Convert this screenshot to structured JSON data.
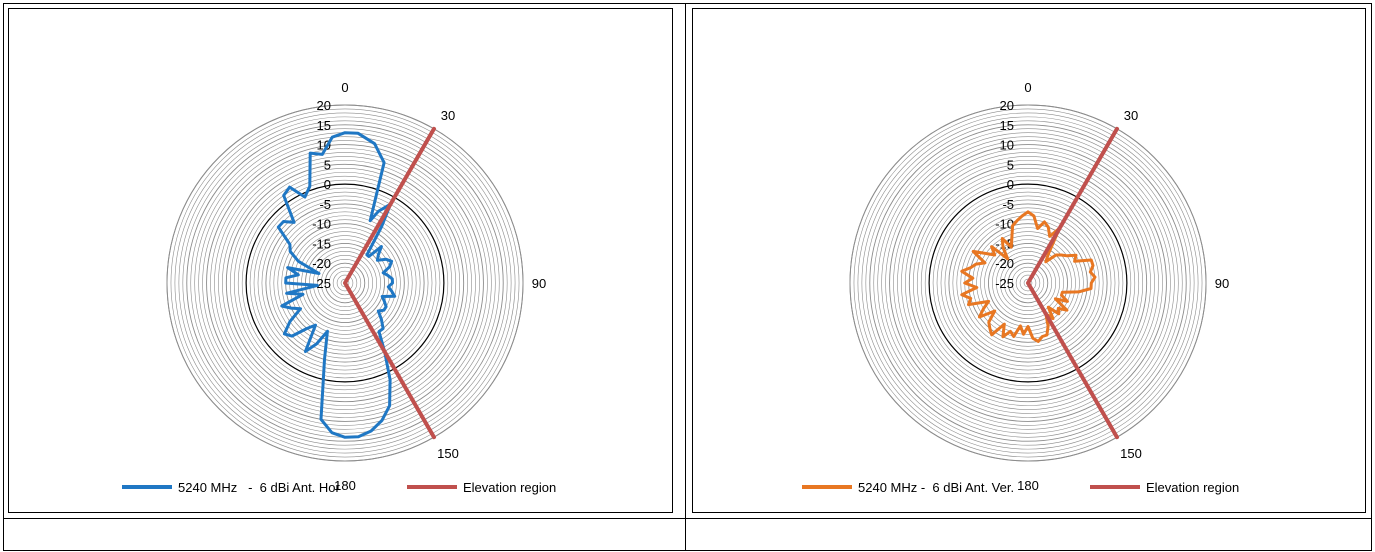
{
  "colors": {
    "horizontal": "#1f77c4",
    "vertical": "#e87722",
    "elevation": "#c0504d",
    "grid": "#8c8c8c",
    "zero_ring": "#000000"
  },
  "chart_data": [
    {
      "type": "polar-line",
      "title": "",
      "radial_ticks": [
        "20",
        "15",
        "10",
        "5",
        "0",
        "-5",
        "-10",
        "-15",
        "-20",
        "-25"
      ],
      "r_range": [
        -25,
        20
      ],
      "angle_labels": [
        "0",
        "30",
        "90",
        "150",
        "180"
      ],
      "grid": true,
      "legend_position": "bottom",
      "series": [
        {
          "name": "5240 MHz   -  6 dBi Ant. Hor",
          "color_key": "horizontal",
          "points": [
            [
              0,
              13
            ],
            [
              5,
              13
            ],
            [
              12,
              11
            ],
            [
              18,
              7
            ],
            [
              22,
              -8
            ],
            [
              25,
              -5
            ],
            [
              30,
              -2
            ],
            [
              33,
              -8
            ],
            [
              38,
              -16
            ],
            [
              42,
              -16
            ],
            [
              45,
              -12
            ],
            [
              50,
              -14
            ],
            [
              55,
              -15
            ],
            [
              60,
              -13
            ],
            [
              65,
              -12
            ],
            [
              70,
              -13
            ],
            [
              75,
              -15
            ],
            [
              80,
              -14
            ],
            [
              85,
              -13
            ],
            [
              90,
              -13
            ],
            [
              95,
              -14
            ],
            [
              100,
              -13
            ],
            [
              105,
              -12
            ],
            [
              110,
              -15
            ],
            [
              115,
              -14
            ],
            [
              120,
              -13
            ],
            [
              125,
              -13
            ],
            [
              130,
              -14
            ],
            [
              135,
              -12
            ],
            [
              140,
              -10
            ],
            [
              145,
              -10
            ],
            [
              150,
              -5
            ],
            [
              155,
              2
            ],
            [
              160,
              8
            ],
            [
              165,
              11
            ],
            [
              170,
              13
            ],
            [
              175,
              14
            ],
            [
              180,
              14
            ],
            [
              185,
              13
            ],
            [
              190,
              10
            ],
            [
              195,
              -5
            ],
            [
              200,
              -12
            ],
            [
              205,
              -8
            ],
            [
              210,
              -5
            ],
            [
              215,
              -12
            ],
            [
              220,
              -10
            ],
            [
              225,
              -6
            ],
            [
              230,
              -5
            ],
            [
              235,
              -8
            ],
            [
              240,
              -12
            ],
            [
              245,
              -10
            ],
            [
              250,
              -8
            ],
            [
              255,
              -14
            ],
            [
              260,
              -10
            ],
            [
              265,
              -18
            ],
            [
              270,
              -10
            ],
            [
              275,
              -10
            ],
            [
              280,
              -13
            ],
            [
              285,
              -10
            ],
            [
              290,
              -18
            ],
            [
              295,
              -12
            ],
            [
              300,
              -9
            ],
            [
              305,
              -8
            ],
            [
              310,
              -3
            ],
            [
              315,
              -3
            ],
            [
              320,
              -5
            ],
            [
              325,
              2
            ],
            [
              330,
              3
            ],
            [
              335,
              -1
            ],
            [
              340,
              1
            ],
            [
              345,
              9
            ],
            [
              350,
              8
            ],
            [
              355,
              12
            ]
          ]
        },
        {
          "name": "Elevation region",
          "color_key": "elevation",
          "points": [
            [
              30,
              20
            ],
            [
              30,
              -25
            ],
            [
              150,
              -25
            ],
            [
              150,
              20
            ]
          ]
        }
      ]
    },
    {
      "type": "polar-line",
      "title": "",
      "radial_ticks": [
        "20",
        "15",
        "10",
        "5",
        "0",
        "-5",
        "-10",
        "-15",
        "-20",
        "-25"
      ],
      "r_range": [
        -25,
        20
      ],
      "angle_labels": [
        "0",
        "30",
        "90",
        "150",
        "180"
      ],
      "grid": true,
      "legend_position": "bottom",
      "series": [
        {
          "name": "5240 MHz -  6 dBi Ant. Ver.",
          "color_key": "vertical",
          "points": [
            [
              0,
              -7
            ],
            [
              5,
              -8
            ],
            [
              10,
              -11
            ],
            [
              15,
              -9
            ],
            [
              20,
              -10
            ],
            [
              25,
              -12
            ],
            [
              30,
              -9
            ],
            [
              35,
              -16
            ],
            [
              40,
              -18
            ],
            [
              45,
              -15
            ],
            [
              50,
              -14
            ],
            [
              55,
              -13
            ],
            [
              60,
              -11
            ],
            [
              65,
              -12
            ],
            [
              70,
              -8
            ],
            [
              75,
              -8
            ],
            [
              80,
              -9
            ],
            [
              85,
              -8
            ],
            [
              90,
              -9
            ],
            [
              95,
              -9
            ],
            [
              100,
              -12
            ],
            [
              105,
              -16
            ],
            [
              110,
              -16
            ],
            [
              115,
              -14
            ],
            [
              120,
              -17
            ],
            [
              125,
              -13
            ],
            [
              130,
              -15
            ],
            [
              135,
              -14
            ],
            [
              140,
              -17
            ],
            [
              145,
              -14
            ],
            [
              150,
              -16
            ],
            [
              155,
              -13
            ],
            [
              160,
              -11
            ],
            [
              165,
              -11
            ],
            [
              170,
              -10
            ],
            [
              175,
              -11
            ],
            [
              180,
              -14
            ],
            [
              185,
              -12
            ],
            [
              190,
              -14
            ],
            [
              195,
              -11
            ],
            [
              200,
              -12
            ],
            [
              205,
              -10
            ],
            [
              210,
              -13
            ],
            [
              215,
              -9
            ],
            [
              220,
              -10
            ],
            [
              225,
              -11
            ],
            [
              230,
              -14
            ],
            [
              235,
              -10
            ],
            [
              240,
              -12
            ],
            [
              245,
              -14
            ],
            [
              250,
              -9
            ],
            [
              255,
              -10
            ],
            [
              260,
              -8
            ],
            [
              265,
              -12
            ],
            [
              270,
              -9
            ],
            [
              275,
              -11
            ],
            [
              280,
              -8
            ],
            [
              285,
              -10
            ],
            [
              290,
              -11
            ],
            [
              295,
              -13
            ],
            [
              300,
              -9
            ],
            [
              305,
              -12
            ],
            [
              310,
              -14
            ],
            [
              315,
              -12
            ],
            [
              320,
              -17
            ],
            [
              325,
              -14
            ],
            [
              330,
              -12
            ],
            [
              335,
              -15
            ],
            [
              340,
              -13
            ],
            [
              345,
              -10
            ],
            [
              350,
              -9
            ],
            [
              355,
              -8
            ]
          ]
        },
        {
          "name": "Elevation region",
          "color_key": "elevation",
          "points": [
            [
              30,
              20
            ],
            [
              30,
              -25
            ],
            [
              150,
              -25
            ],
            [
              150,
              20
            ]
          ]
        }
      ]
    }
  ]
}
